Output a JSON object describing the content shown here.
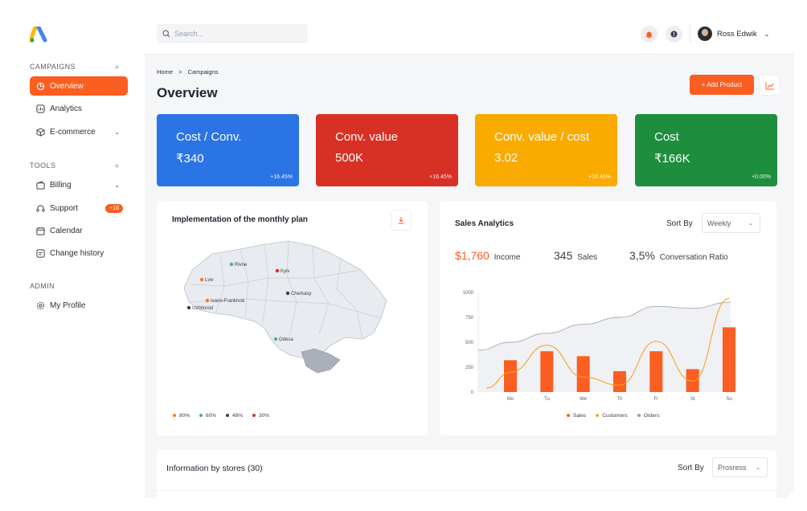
{
  "user": {
    "name": "Ross Edwik"
  },
  "search": {
    "placeholder": "Search..."
  },
  "sidebar": {
    "campaigns_title": "CAMPAIGNS",
    "tools_title": "TOOLS",
    "admin_title": "ADMIN",
    "items": [
      {
        "label": "Overview",
        "icon": "pie-chart-icon"
      },
      {
        "label": "Analytics",
        "icon": "analytics-icon"
      },
      {
        "label": "E-commerce",
        "icon": "cube-icon"
      },
      {
        "label": "Billing",
        "icon": "wallet-icon"
      },
      {
        "label": "Support",
        "icon": "headset-icon",
        "badge": "+16"
      },
      {
        "label": "Calendar",
        "icon": "calendar-icon"
      },
      {
        "label": "Change history",
        "icon": "history-icon"
      },
      {
        "label": "My Profile",
        "icon": "gear-icon"
      }
    ]
  },
  "breadcrumb": {
    "home": "Home",
    "sep": ">",
    "current": "Campaigns"
  },
  "page": {
    "title": "Overview",
    "add_button": "+ Add Product"
  },
  "kpis": [
    {
      "title": "Cost / Conv.",
      "value": "₹340",
      "delta": "+16.45%",
      "color": "#2b74e6"
    },
    {
      "title": "Conv. value",
      "value": "500K",
      "delta": "+16.45%",
      "color": "#d93025"
    },
    {
      "title": "Conv. value / cost",
      "value": "3.02",
      "delta": "+16.45%",
      "color": "#f9ab00"
    },
    {
      "title": "Cost",
      "value": "₹166K",
      "delta": "+0.00%",
      "color": "#1e8e3e"
    }
  ],
  "map_card": {
    "title": "Implementation of the monthly plan",
    "cities": [
      {
        "name": "Rivne",
        "color": "#4caf8a"
      },
      {
        "name": "Kyiv",
        "color": "#d93025"
      },
      {
        "name": "Lviv",
        "color": "#f47a2a"
      },
      {
        "name": "Ivano-Frankivsk",
        "color": "#f47a2a"
      },
      {
        "name": "Uzhhorod",
        "color": "#3a3f4a"
      },
      {
        "name": "Cherkasy",
        "color": "#3a3f4a"
      },
      {
        "name": "Odesa",
        "color": "#4caf8a"
      }
    ],
    "legend": [
      {
        "label": "80%",
        "color": "#f47a2a"
      },
      {
        "label": "60%",
        "color": "#4caf8a"
      },
      {
        "label": "48%",
        "color": "#3a3f4a"
      },
      {
        "label": "30%",
        "color": "#d93025"
      }
    ]
  },
  "sales_card": {
    "title": "Sales Analytics",
    "sort_label": "Sort By",
    "sort_value": "Weekly",
    "income_value": "$1,760",
    "income_label": "Income",
    "sales_value": "345",
    "sales_label": "Sales",
    "ratio_value": "3,5%",
    "ratio_label": "Conversation Ratio"
  },
  "chart_data": {
    "type": "bar",
    "categories": [
      "Mo",
      "Tu",
      "We",
      "Th",
      "Fr",
      "St",
      "Su"
    ],
    "ylim": [
      0,
      1000
    ],
    "yticks": [
      0,
      250,
      500,
      750,
      1000
    ],
    "series": [
      {
        "name": "Sales",
        "type": "bar",
        "color": "#fb5e21",
        "values": [
          320,
          410,
          360,
          210,
          410,
          230,
          650
        ]
      },
      {
        "name": "Customers",
        "type": "line",
        "color": "#f5a623",
        "values": [
          200,
          470,
          150,
          70,
          510,
          110,
          940
        ]
      },
      {
        "name": "Orders",
        "type": "area",
        "color": "#9aa0ab",
        "values": [
          500,
          590,
          680,
          750,
          860,
          840,
          900
        ]
      }
    ]
  },
  "stores_card": {
    "title": "Information by stores (30)",
    "sort_label": "Sort By",
    "sort_value": "Prosress"
  }
}
